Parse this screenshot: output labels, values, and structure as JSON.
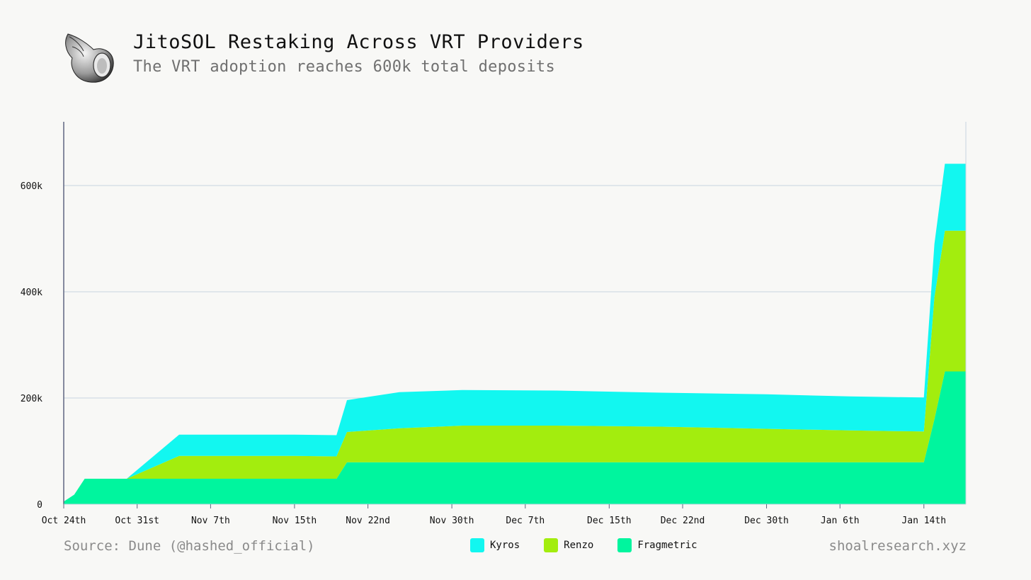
{
  "header": {
    "title": "JitoSOL Restaking Across VRT Providers",
    "subtitle": "The VRT adoption reaches 600k total deposits",
    "logo_icon": "seashell-icon"
  },
  "footer": {
    "source": "Source: Dune (@hashed_official)",
    "site": "shoalresearch.xyz"
  },
  "chart_data": {
    "type": "area",
    "stacked": true,
    "x_start": "2024-10-24",
    "x_end": "2025-01-18",
    "ylim": [
      0,
      720000
    ],
    "grid": true,
    "y_ticks": [
      {
        "value": 0,
        "label": "0"
      },
      {
        "value": 200000,
        "label": "200k"
      },
      {
        "value": 400000,
        "label": "400k"
      },
      {
        "value": 600000,
        "label": "600k"
      }
    ],
    "x_ticks": [
      {
        "date": "2024-10-24",
        "label": "Oct 24th"
      },
      {
        "date": "2024-10-31",
        "label": "Oct 31st"
      },
      {
        "date": "2024-11-07",
        "label": "Nov 7th"
      },
      {
        "date": "2024-11-15",
        "label": "Nov 15th"
      },
      {
        "date": "2024-11-22",
        "label": "Nov 22nd"
      },
      {
        "date": "2024-11-30",
        "label": "Nov 30th"
      },
      {
        "date": "2024-12-07",
        "label": "Dec 7th"
      },
      {
        "date": "2024-12-15",
        "label": "Dec 15th"
      },
      {
        "date": "2024-12-22",
        "label": "Dec 22nd"
      },
      {
        "date": "2024-12-30",
        "label": "Dec 30th"
      },
      {
        "date": "2025-01-06",
        "label": "Jan 6th"
      },
      {
        "date": "2025-01-14",
        "label": "Jan 14th"
      }
    ],
    "legend_position": "bottom",
    "series": [
      {
        "name": "Fragmetric",
        "color": "#00f59e",
        "points": [
          [
            "2024-10-24",
            5000
          ],
          [
            "2024-10-25",
            18000
          ],
          [
            "2024-10-26",
            48000
          ],
          [
            "2024-10-30",
            48000
          ],
          [
            "2024-11-04",
            48000
          ],
          [
            "2024-11-10",
            48000
          ],
          [
            "2024-11-15",
            48000
          ],
          [
            "2024-11-19",
            48000
          ],
          [
            "2024-11-20",
            79000
          ],
          [
            "2024-11-25",
            79000
          ],
          [
            "2024-12-01",
            79000
          ],
          [
            "2024-12-10",
            79000
          ],
          [
            "2024-12-20",
            79000
          ],
          [
            "2024-12-30",
            79000
          ],
          [
            "2025-01-07",
            79000
          ],
          [
            "2025-01-14",
            79000
          ],
          [
            "2025-01-15",
            160000
          ],
          [
            "2025-01-16",
            250000
          ],
          [
            "2025-01-17",
            250000
          ],
          [
            "2025-01-18",
            250000
          ]
        ]
      },
      {
        "name": "Renzo",
        "color": "#a3ed0e",
        "points": [
          [
            "2024-10-24",
            0
          ],
          [
            "2024-10-25",
            0
          ],
          [
            "2024-10-26",
            0
          ],
          [
            "2024-10-30",
            0
          ],
          [
            "2024-11-04",
            43000
          ],
          [
            "2024-11-10",
            43000
          ],
          [
            "2024-11-15",
            43000
          ],
          [
            "2024-11-19",
            42000
          ],
          [
            "2024-11-20",
            57000
          ],
          [
            "2024-11-25",
            64000
          ],
          [
            "2024-12-01",
            69000
          ],
          [
            "2024-12-10",
            69000
          ],
          [
            "2024-12-20",
            67000
          ],
          [
            "2024-12-30",
            63000
          ],
          [
            "2025-01-07",
            60000
          ],
          [
            "2025-01-14",
            58000
          ],
          [
            "2025-01-15",
            230000
          ],
          [
            "2025-01-16",
            265000
          ],
          [
            "2025-01-17",
            265000
          ],
          [
            "2025-01-18",
            265000
          ]
        ]
      },
      {
        "name": "Kyros",
        "color": "#12f7f0",
        "points": [
          [
            "2024-10-24",
            0
          ],
          [
            "2024-10-25",
            0
          ],
          [
            "2024-10-26",
            0
          ],
          [
            "2024-10-30",
            0
          ],
          [
            "2024-11-04",
            40000
          ],
          [
            "2024-11-10",
            40000
          ],
          [
            "2024-11-15",
            40000
          ],
          [
            "2024-11-19",
            40000
          ],
          [
            "2024-11-20",
            60000
          ],
          [
            "2024-11-25",
            68000
          ],
          [
            "2024-12-01",
            67000
          ],
          [
            "2024-12-10",
            66000
          ],
          [
            "2024-12-20",
            64000
          ],
          [
            "2024-12-30",
            65000
          ],
          [
            "2025-01-07",
            64000
          ],
          [
            "2025-01-14",
            64000
          ],
          [
            "2025-01-15",
            100000
          ],
          [
            "2025-01-16",
            126000
          ],
          [
            "2025-01-17",
            126000
          ],
          [
            "2025-01-18",
            126000
          ]
        ]
      }
    ]
  },
  "legend": [
    {
      "label": "Kyros",
      "color": "#12f7f0"
    },
    {
      "label": "Renzo",
      "color": "#a3ed0e"
    },
    {
      "label": "Fragmetric",
      "color": "#00f59e"
    }
  ]
}
